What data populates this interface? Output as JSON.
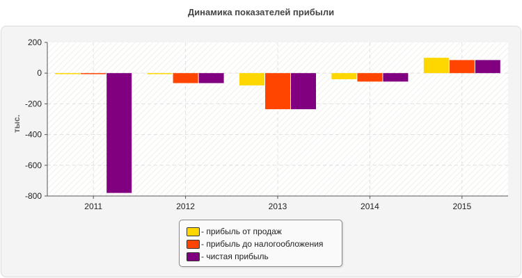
{
  "chart_data": {
    "type": "bar",
    "title": "Динамика показателей прибыли",
    "xlabel": "",
    "ylabel": "тыс.",
    "ylim": [
      -800,
      200
    ],
    "yticks": [
      200,
      0,
      -200,
      -400,
      -600,
      -800
    ],
    "categories": [
      "2011",
      "2012",
      "2013",
      "2014",
      "2015"
    ],
    "series": [
      {
        "name": "- прибыль от продаж",
        "color": "#ffd700",
        "values": [
          -5,
          -5,
          -80,
          -40,
          100
        ]
      },
      {
        "name": "- прибыль до налогообложения",
        "color": "#ff4500",
        "values": [
          -5,
          -65,
          -235,
          -55,
          85
        ]
      },
      {
        "name": "- чистая прибыль",
        "color": "#800080",
        "values": [
          -780,
          -65,
          -235,
          -55,
          85
        ]
      }
    ],
    "grid": true,
    "legend_position": "bottom-center"
  }
}
